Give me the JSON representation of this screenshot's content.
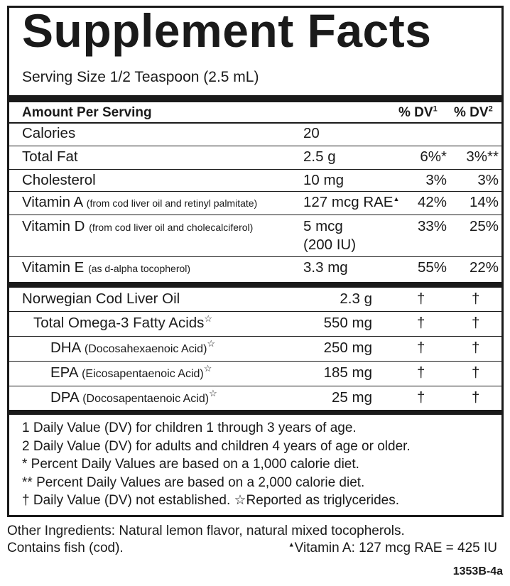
{
  "panel": {
    "title": "Supplement Facts",
    "serving_size": "Serving Size 1/2 Teaspoon (2.5 mL)"
  },
  "header": {
    "amount_per_serving": "Amount Per Serving",
    "dv1": "% DV",
    "dv1_sup": "1",
    "dv2": "% DV",
    "dv2_sup": "2"
  },
  "nutrients": [
    {
      "name": "Calories",
      "detail": "",
      "amount": "20",
      "amount2": "",
      "dv1": "",
      "dv2": ""
    },
    {
      "name": "Total Fat",
      "detail": "",
      "amount": "2.5 g",
      "amount2": "",
      "dv1": "6%*",
      "dv2": "3%**"
    },
    {
      "name": "Cholesterol",
      "detail": "",
      "amount": "10 mg",
      "amount2": "",
      "dv1": "3%",
      "dv2": "3%"
    },
    {
      "name": "Vitamin A",
      "detail": "(from cod liver oil and retinyl palmitate)",
      "amount": "127 mcg RAE",
      "amount_mark": "▲",
      "amount2": "",
      "dv1": "42%",
      "dv2": "14%"
    },
    {
      "name": "Vitamin D",
      "detail": "(from cod liver oil and cholecalciferol)",
      "amount": "5 mcg",
      "amount2": "(200 IU)",
      "dv1": "33%",
      "dv2": "25%"
    },
    {
      "name": "Vitamin E",
      "detail": "(as d-alpha tocopherol)",
      "amount": "3.3 mg",
      "amount2": "",
      "dv1": "55%",
      "dv2": "22%"
    }
  ],
  "ingredients": [
    {
      "name": "Norwegian Cod Liver Oil",
      "detail": "",
      "star": "",
      "amount": "2.3 g",
      "dv1": "†",
      "dv2": "†"
    },
    {
      "name": "Total Omega-3 Fatty Acids",
      "detail": "",
      "star": "☆",
      "amount": "550 mg",
      "dv1": "†",
      "dv2": "†"
    },
    {
      "name": "DHA",
      "detail": "(Docosahexaenoic Acid)",
      "star": "☆",
      "amount": "250 mg",
      "dv1": "†",
      "dv2": "†"
    },
    {
      "name": "EPA",
      "detail": "(Eicosapentaenoic Acid)",
      "star": "☆",
      "amount": "185 mg",
      "dv1": "†",
      "dv2": "†"
    },
    {
      "name": "DPA",
      "detail": "(Docosapentaenoic Acid)",
      "star": "☆",
      "amount": "25 mg",
      "dv1": "†",
      "dv2": "†"
    }
  ],
  "footnotes": [
    "1 Daily Value (DV) for children 1 through 3 years of age.",
    "2 Daily Value (DV) for adults and children 4 years of age or older.",
    "* Percent Daily Values are based on a 1,000 calorie diet.",
    "** Percent Daily Values are based on a 2,000 calorie diet.",
    "† Daily Value (DV) not established. ☆Reported as triglycerides."
  ],
  "other": {
    "other_ingredients": "Other Ingredients:  Natural lemon flavor, natural mixed tocopherols.",
    "contains": "Contains fish (cod).",
    "vitamin_a_mark": "▲",
    "vitamin_a_note": "Vitamin A: 127 mcg RAE = 425 IU",
    "code": "1353B-4a"
  }
}
